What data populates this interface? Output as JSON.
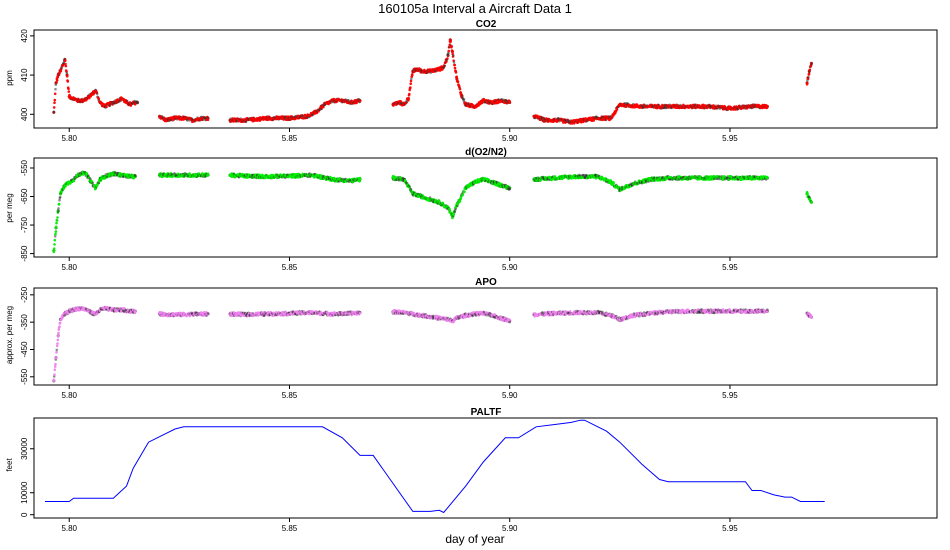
{
  "figure": {
    "title": "160105a   Interval a Aircraft Data 1",
    "xlabel": "day of year"
  },
  "chart_data": [
    {
      "type": "scatter",
      "title": "CO2",
      "ylabel": "ppm",
      "xlim": [
        5.792,
        5.997
      ],
      "ylim": [
        396.5,
        421.5
      ],
      "xticks": [
        "5.80",
        "5.85",
        "5.90",
        "5.95"
      ],
      "yticks": [
        "400",
        "410",
        "420"
      ],
      "color": "#ff0000",
      "series": [
        {
          "segments": [
            {
              "x": [
                5.7965,
                5.797,
                5.7975,
                5.798,
                5.7985,
                5.799,
                5.7995,
                5.8,
                5.801,
                5.802,
                5.803,
                5.804,
                5.805,
                5.806,
                5.807,
                5.808,
                5.809,
                5.81,
                5.811,
                5.812,
                5.813,
                5.814,
                5.815,
                5.8155
              ],
              "y": [
                400.5,
                408.0,
                410.0,
                411.0,
                412.5,
                414.0,
                410.0,
                404.5,
                404.0,
                403.5,
                403.5,
                404.0,
                405.0,
                406.0,
                403.0,
                402.0,
                402.5,
                403.0,
                403.5,
                404.0,
                403.0,
                402.5,
                403.0,
                403.0
              ]
            },
            {
              "x": [
                5.8205,
                5.822,
                5.824,
                5.826,
                5.828,
                5.83,
                5.8315
              ],
              "y": [
                399.5,
                398.5,
                399.0,
                399.0,
                398.5,
                399.0,
                399.0
              ]
            },
            {
              "x": [
                5.8365,
                5.84,
                5.845,
                5.85,
                5.854,
                5.856,
                5.858,
                5.86,
                5.862,
                5.864,
                5.866
              ],
              "y": [
                398.5,
                398.5,
                399.0,
                399.0,
                399.5,
                400.5,
                402.5,
                403.5,
                403.5,
                403.0,
                403.5
              ]
            },
            {
              "x": [
                5.8735,
                5.875,
                5.876,
                5.877,
                5.878,
                5.879,
                5.88,
                5.882,
                5.884,
                5.885,
                5.886,
                5.8865,
                5.887,
                5.888,
                5.889,
                5.89,
                5.892,
                5.894,
                5.896,
                5.898,
                5.9
              ],
              "y": [
                402.5,
                403.0,
                402.5,
                404.0,
                411.0,
                411.5,
                411.0,
                411.0,
                411.5,
                412.0,
                415.0,
                419.0,
                416.0,
                409.0,
                405.0,
                402.5,
                402.0,
                403.5,
                403.0,
                403.5,
                403.0
              ]
            },
            {
              "x": [
                5.9055,
                5.908,
                5.911,
                5.914,
                5.917,
                5.92,
                5.923,
                5.925,
                5.93,
                5.935,
                5.94,
                5.945,
                5.95,
                5.955,
                5.9585
              ],
              "y": [
                399.5,
                398.5,
                398.5,
                398.0,
                398.5,
                399.0,
                399.0,
                402.5,
                402.0,
                402.0,
                402.0,
                402.0,
                401.5,
                402.0,
                402.0
              ]
            },
            {
              "x": [
                5.9675,
                5.968,
                5.9685
              ],
              "y": [
                408.0,
                411.0,
                413.0
              ]
            }
          ]
        }
      ]
    },
    {
      "type": "scatter",
      "title": "d(O2/N2)",
      "ylabel": "per meg",
      "xlim": [
        5.792,
        5.997
      ],
      "ylim": [
        -862,
        -515
      ],
      "xticks": [
        "5.80",
        "5.85",
        "5.90",
        "5.95"
      ],
      "yticks": [
        "-850",
        "-750",
        "-650",
        "-550"
      ],
      "color": "#00ee00",
      "series": [
        {
          "segments": [
            {
              "x": [
                5.7965,
                5.797,
                5.7975,
                5.798,
                5.799,
                5.8,
                5.801,
                5.802,
                5.803,
                5.804,
                5.805,
                5.806,
                5.807,
                5.808,
                5.81,
                5.812,
                5.814,
                5.815
              ],
              "y": [
                -840,
                -760,
                -700,
                -640,
                -610,
                -600,
                -590,
                -575,
                -565,
                -575,
                -600,
                -620,
                -590,
                -580,
                -570,
                -575,
                -580,
                -580
              ]
            },
            {
              "x": [
                5.8205,
                5.823,
                5.826,
                5.829,
                5.8315
              ],
              "y": [
                -575,
                -575,
                -575,
                -575,
                -575
              ]
            },
            {
              "x": [
                5.8365,
                5.84,
                5.845,
                5.85,
                5.855,
                5.86,
                5.864,
                5.866
              ],
              "y": [
                -575,
                -578,
                -580,
                -578,
                -575,
                -590,
                -595,
                -590
              ]
            },
            {
              "x": [
                5.8735,
                5.876,
                5.878,
                5.88,
                5.882,
                5.884,
                5.886,
                5.887,
                5.888,
                5.89,
                5.892,
                5.894,
                5.896,
                5.898,
                5.9
              ],
              "y": [
                -585,
                -590,
                -640,
                -650,
                -660,
                -670,
                -690,
                -720,
                -680,
                -620,
                -600,
                -590,
                -600,
                -610,
                -620
              ]
            },
            {
              "x": [
                5.9055,
                5.91,
                5.915,
                5.92,
                5.923,
                5.925,
                5.928,
                5.932,
                5.936,
                5.94,
                5.945,
                5.95,
                5.955,
                5.9585
              ],
              "y": [
                -590,
                -585,
                -580,
                -580,
                -600,
                -625,
                -605,
                -590,
                -585,
                -585,
                -585,
                -585,
                -585,
                -585
              ]
            },
            {
              "x": [
                5.9675,
                5.968,
                5.9685
              ],
              "y": [
                -640,
                -655,
                -670
              ]
            }
          ]
        }
      ]
    },
    {
      "type": "scatter",
      "title": "APO",
      "ylabel": "approx. per meg",
      "xlim": [
        5.792,
        5.997
      ],
      "ylim": [
        -580,
        -225
      ],
      "xticks": [
        "5.80",
        "5.85",
        "5.90",
        "5.95"
      ],
      "yticks": [
        "-550",
        "-450",
        "-350",
        "-250"
      ],
      "color": "#ee82ee",
      "series": [
        {
          "segments": [
            {
              "x": [
                5.7965,
                5.797,
                5.7975,
                5.798,
                5.799,
                5.8,
                5.801,
                5.802,
                5.803,
                5.804,
                5.805,
                5.806,
                5.807,
                5.808,
                5.81,
                5.812,
                5.814,
                5.815
              ],
              "y": [
                -565,
                -480,
                -400,
                -340,
                -320,
                -310,
                -305,
                -300,
                -300,
                -305,
                -315,
                -320,
                -305,
                -300,
                -305,
                -305,
                -310,
                -310
              ]
            },
            {
              "x": [
                5.8205,
                5.823,
                5.826,
                5.829,
                5.8315
              ],
              "y": [
                -320,
                -322,
                -322,
                -320,
                -320
              ]
            },
            {
              "x": [
                5.8365,
                5.84,
                5.845,
                5.85,
                5.855,
                5.86,
                5.864,
                5.866
              ],
              "y": [
                -320,
                -322,
                -320,
                -318,
                -315,
                -320,
                -318,
                -315
              ]
            },
            {
              "x": [
                5.8735,
                5.876,
                5.878,
                5.88,
                5.882,
                5.884,
                5.886,
                5.887,
                5.888,
                5.89,
                5.892,
                5.894,
                5.896,
                5.898,
                5.9
              ],
              "y": [
                -312,
                -315,
                -320,
                -325,
                -330,
                -335,
                -340,
                -345,
                -335,
                -325,
                -320,
                -318,
                -325,
                -335,
                -345
              ]
            },
            {
              "x": [
                5.9055,
                5.91,
                5.915,
                5.92,
                5.923,
                5.925,
                5.928,
                5.932,
                5.936,
                5.94,
                5.945,
                5.95,
                5.955,
                5.9585
              ],
              "y": [
                -322,
                -318,
                -315,
                -315,
                -325,
                -340,
                -325,
                -318,
                -312,
                -310,
                -310,
                -310,
                -310,
                -310
              ]
            },
            {
              "x": [
                5.9675,
                5.968,
                5.9685
              ],
              "y": [
                -318,
                -325,
                -332
              ]
            }
          ]
        }
      ]
    },
    {
      "type": "line",
      "title": "PALTF",
      "ylabel": "feet",
      "xlim": [
        5.792,
        5.997
      ],
      "ylim": [
        -1500,
        44000
      ],
      "xticks": [
        "5.80",
        "5.85",
        "5.90",
        "5.95"
      ],
      "yticks": [
        "0",
        "10000",
        "30000"
      ],
      "color": "#0000ff",
      "series": [
        {
          "segments": [
            {
              "x": [
                5.7945,
                5.8,
                5.801,
                5.81,
                5.813,
                5.8145,
                5.818,
                5.82,
                5.822,
                5.824,
                5.826,
                5.84,
                5.8575,
                5.862,
                5.866,
                5.869,
                5.878,
                5.882,
                5.884,
                5.885,
                5.89,
                5.894,
                5.899,
                5.902,
                5.906,
                5.91,
                5.914,
                5.916,
                5.917,
                5.92,
                5.922,
                5.925,
                5.93,
                5.934,
                5.936,
                5.941,
                5.944,
                5.948,
                5.9535,
                5.955,
                5.957,
                5.96,
                5.9625,
                5.964,
                5.966,
                5.968,
                5.9715
              ],
              "y": [
                6000,
                6000,
                7500,
                7500,
                13000,
                21000,
                33000,
                35000,
                37000,
                39000,
                40000,
                40000,
                40000,
                35000,
                27000,
                27000,
                1500,
                1500,
                2000,
                1000,
                13000,
                24000,
                35000,
                35000,
                40000,
                41000,
                42000,
                43000,
                43000,
                40000,
                38000,
                33000,
                23000,
                16000,
                15000,
                15000,
                15000,
                15000,
                15000,
                11000,
                11000,
                9000,
                8000,
                8000,
                6000,
                6000,
                6000
              ]
            }
          ]
        }
      ]
    }
  ]
}
